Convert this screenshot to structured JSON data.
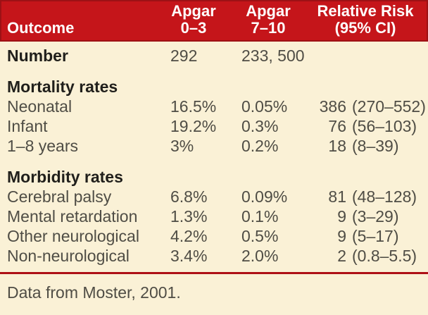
{
  "colors": {
    "header_red": "#c5151a",
    "header_border_red": "#9d1115",
    "rule_red": "#ae1016",
    "background_cream": "#faf1d6",
    "header_text": "#ffffff",
    "bold_text": "#201f1b",
    "body_text": "#4f4d45"
  },
  "chart_data": {
    "type": "table",
    "header": {
      "col1": "Outcome",
      "col2": {
        "line1": "Apgar",
        "line2": "0–3"
      },
      "col3": {
        "line1": "Apgar",
        "line2": "7–10"
      },
      "col4": {
        "line1": "Relative Risk",
        "line2": "(95% CI)"
      }
    },
    "rows": [
      {
        "kind": "value-row",
        "bold": true,
        "label": "Number",
        "apgar_0_3": "292",
        "apgar_7_10": "233, 500",
        "rr_num": "",
        "rr_ci": ""
      },
      {
        "kind": "section-row",
        "label": "Mortality rates"
      },
      {
        "kind": "value-row",
        "bold": false,
        "label": "Neonatal",
        "apgar_0_3": "16.5%",
        "apgar_7_10": "0.05%",
        "rr_num": "386",
        "rr_ci": "(270–552)"
      },
      {
        "kind": "value-row",
        "bold": false,
        "label": "Infant",
        "apgar_0_3": "19.2%",
        "apgar_7_10": "0.3%",
        "rr_num": "76",
        "rr_ci": "(56–103)"
      },
      {
        "kind": "value-row",
        "bold": false,
        "label": "1–8 years",
        "apgar_0_3": "3%",
        "apgar_7_10": "0.2%",
        "rr_num": "18",
        "rr_ci": "(8–39)"
      },
      {
        "kind": "section-row",
        "label": "Morbidity rates"
      },
      {
        "kind": "value-row",
        "bold": false,
        "label": "Cerebral palsy",
        "apgar_0_3": "6.8%",
        "apgar_7_10": "0.09%",
        "rr_num": "81",
        "rr_ci": "(48–128)"
      },
      {
        "kind": "value-row",
        "bold": false,
        "label": "Mental retardation",
        "apgar_0_3": "1.3%",
        "apgar_7_10": "0.1%",
        "rr_num": "9",
        "rr_ci": "(3–29)"
      },
      {
        "kind": "value-row",
        "bold": false,
        "label": "Other neurological",
        "apgar_0_3": "4.2%",
        "apgar_7_10": "0.5%",
        "rr_num": "9",
        "rr_ci": "(5–17)"
      },
      {
        "kind": "value-row",
        "bold": false,
        "label": "Non-neurological",
        "apgar_0_3": "3.4%",
        "apgar_7_10": "2.0%",
        "rr_num": "2",
        "rr_ci": "(0.8–5.5)"
      }
    ],
    "footer": "Data from Moster, 2001."
  }
}
